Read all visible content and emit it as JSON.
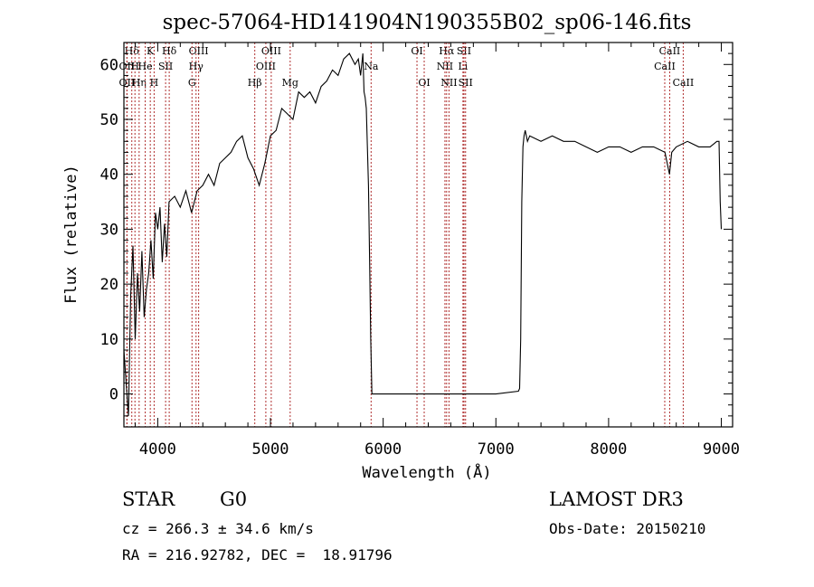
{
  "chart_data": {
    "type": "line",
    "title": "spec-57064-HD141904N190355B02_sp06-146.fits",
    "xlabel": "Wavelength (Å)",
    "ylabel": "Flux (relative)",
    "xlim": [
      3700,
      9100
    ],
    "ylim": [
      -6,
      64
    ],
    "xticks": [
      4000,
      5000,
      6000,
      7000,
      8000,
      9000
    ],
    "yticks": [
      0,
      10,
      20,
      30,
      40,
      50,
      60
    ],
    "series": [
      {
        "name": "flux",
        "x": [
          3700,
          3720,
          3740,
          3760,
          3780,
          3800,
          3820,
          3840,
          3860,
          3880,
          3900,
          3920,
          3940,
          3960,
          3980,
          4000,
          4020,
          4040,
          4060,
          4080,
          4100,
          4150,
          4200,
          4250,
          4300,
          4350,
          4400,
          4450,
          4500,
          4550,
          4600,
          4650,
          4700,
          4750,
          4800,
          4850,
          4900,
          4950,
          5000,
          5050,
          5100,
          5150,
          5200,
          5250,
          5300,
          5350,
          5400,
          5450,
          5500,
          5550,
          5600,
          5650,
          5700,
          5750,
          5780,
          5800,
          5820,
          5830,
          5840,
          5850,
          5860,
          5870,
          5880,
          5890,
          5900,
          6000,
          6500,
          7000,
          7200,
          7210,
          7220,
          7230,
          7240,
          7250,
          7260,
          7280,
          7300,
          7400,
          7500,
          7600,
          7700,
          7800,
          7900,
          8000,
          8100,
          8200,
          8300,
          8400,
          8500,
          8540,
          8560,
          8600,
          8700,
          8800,
          8900,
          8960,
          8980,
          8990,
          9000
        ],
        "y": [
          8,
          2,
          -4,
          18,
          27,
          10,
          22,
          15,
          26,
          14,
          19,
          22,
          28,
          21,
          33,
          30,
          34,
          24,
          31,
          25,
          35,
          36,
          34,
          37,
          33,
          37,
          38,
          40,
          38,
          42,
          43,
          44,
          46,
          47,
          43,
          41,
          38,
          42,
          47,
          48,
          52,
          51,
          50,
          55,
          54,
          55,
          53,
          56,
          57,
          59,
          58,
          61,
          62,
          60,
          61,
          58,
          62,
          55,
          54,
          52,
          45,
          38,
          24,
          10,
          0,
          0,
          0,
          0,
          0.5,
          1,
          10,
          35,
          45,
          47,
          48,
          46,
          47,
          46,
          47,
          46,
          46,
          45,
          44,
          45,
          45,
          44,
          45,
          45,
          44,
          40,
          44,
          45,
          46,
          45,
          45,
          46,
          46,
          35,
          30
        ]
      }
    ],
    "spectral_lines": [
      {
        "label": "Hδ",
        "wl": 3770,
        "row": 0
      },
      {
        "label": "OII",
        "wl": 3727,
        "row": 1
      },
      {
        "label": "OII",
        "wl": 3727,
        "row": 2
      },
      {
        "label": "H",
        "wl": 3798,
        "row": 1
      },
      {
        "label": "Hη",
        "wl": 3835,
        "row": 2
      },
      {
        "label": "K",
        "wl": 3934,
        "row": 0
      },
      {
        "label": "He",
        "wl": 3889,
        "row": 1
      },
      {
        "label": "H",
        "wl": 3968,
        "row": 2
      },
      {
        "label": "SII",
        "wl": 4070,
        "row": 1
      },
      {
        "label": "Hδ",
        "wl": 4102,
        "row": 0
      },
      {
        "label": "OIII",
        "wl": 4363,
        "row": 0
      },
      {
        "label": "Hγ",
        "wl": 4340,
        "row": 1
      },
      {
        "label": "G",
        "wl": 4304,
        "row": 2
      },
      {
        "label": "Hβ",
        "wl": 4861,
        "row": 2
      },
      {
        "label": "OIII",
        "wl": 5007,
        "row": 0
      },
      {
        "label": "OIII",
        "wl": 4959,
        "row": 1
      },
      {
        "label": "Mg",
        "wl": 5175,
        "row": 2
      },
      {
        "label": "Na",
        "wl": 5893,
        "row": 1
      },
      {
        "label": "OI",
        "wl": 6300,
        "row": 0
      },
      {
        "label": "OI",
        "wl": 6364,
        "row": 2
      },
      {
        "label": "Hα",
        "wl": 6563,
        "row": 0
      },
      {
        "label": "NII",
        "wl": 6548,
        "row": 1
      },
      {
        "label": "NII",
        "wl": 6584,
        "row": 2
      },
      {
        "label": "SII",
        "wl": 6717,
        "row": 0
      },
      {
        "label": "Li",
        "wl": 6708,
        "row": 1
      },
      {
        "label": "SII",
        "wl": 6731,
        "row": 2
      },
      {
        "label": "CaII",
        "wl": 8542,
        "row": 0
      },
      {
        "label": "CaII",
        "wl": 8498,
        "row": 1
      },
      {
        "label": "CaII",
        "wl": 8662,
        "row": 2
      }
    ]
  },
  "info": {
    "object_class": "STAR",
    "subclass": "G0",
    "survey": "LAMOST DR3",
    "cz": "cz = 266.3 ± 34.6 km/s",
    "obs_date": "Obs-Date: 20150210",
    "coords": "RA = 216.92782, DEC =  18.91796"
  }
}
